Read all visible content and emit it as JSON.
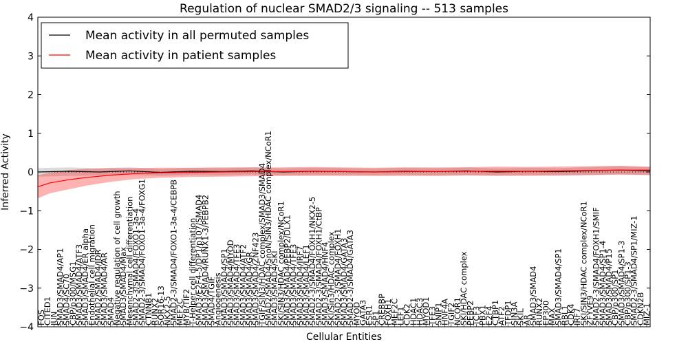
{
  "chart_data": {
    "type": "line",
    "title": "Regulation of nuclear SMAD2/3 signaling -- 513 samples",
    "xlabel": "Cellular Entities",
    "ylabel": "Inferred Activity",
    "ylim": [
      -4,
      4
    ],
    "yticks": [
      -4,
      -3,
      -2,
      -1,
      0,
      1,
      2,
      3,
      4
    ],
    "legend": {
      "position": "top-left",
      "entries": [
        {
          "label": "Mean activity in all permuted samples",
          "color": "#000000"
        },
        {
          "label": "Mean activity in patient samples",
          "color": "#ff0000"
        }
      ]
    },
    "colors": {
      "permuted": "#000000",
      "patient": "#ff0000",
      "permuted_band": "#b0b0b0",
      "patient_band": "#ff0000"
    },
    "categories": [
      "FOS",
      "CITED1",
      "JUN",
      "SMAD3/SMAD4/AP1",
      "SMAD4/SC70",
      "CBP/p300/MSG1",
      "SMAD3/SMAD4/ATF3",
      "SMAD3/SMAD4/ER alpha",
      "Endothelial cell migration",
      "SMAD2/SMAD4/JDR",
      "SMAD3/SMAD4/AR",
      "SMAD4",
      "Negative regulation of cell growth",
      "SMAD3/SMAD4/Max",
      "Mesenchymal cell differentiation",
      "SMAD2-3/SMAD4/FOXO1-3a-4",
      "SMAD2-3/SMAD4/FOXO1-3a-4/FOXG1",
      "CTNNB1",
      "RUNX2",
      "SOR16-13",
      "NKX2-5",
      "SMAD2-3/SMAD4/FOXO1-3a-4/CEBPB",
      "MEF2C",
      "MYB/TIF2",
      "T-Helper cell differentiation",
      "SMAD3/E2F4-5/DP1/p107/SMAD4",
      "SMAD3/SMAD4/RUNX1-3/PEBPB2",
      "SMAD4/TGIF",
      "Angiogenesis",
      "SMAD3/SMAD4/SP1",
      "SMAD3/SMAD4/MYOD",
      "SMAD3/SMAD4/TFE3",
      "SMAD3/SMAD4/ATF2",
      "SMAD3/SMAD4/GR",
      "SMAD3/SMAD4/ZNF423",
      "TGIF/SIN3/HDAC complex/SMAD3/SMAD4",
      "SMAD2/SMAD4/SnoN/SIN3/HDAC complex/NCoR1",
      "SMAD3/SMAD4/SKI",
      "SKI/SIN3/HDAC complex/NCoR1",
      "SMAD3/SMAD4/PEBP2/DLX1",
      "SMAD3/SMAD4/TFE3",
      "SMAD3/SMAD4/IRF7",
      "SMAD3/SMAD4/LEF1",
      "SMAD2-3/SMAD4/FOXH1/NKX2-5",
      "SMAD2-3/SMAD4/FOXH1/CtBP",
      "SMAD3/SMAD4/HNF4",
      "SKI/Sin3/HDAC complex",
      "SMAD2-3/SMAD4/FOXH1",
      "SMAD3/SMAD4/GATA3",
      "SMAD2-3/SMAD4/GATA3",
      "MYOD",
      "GATA3",
      "ESR1",
      "SP1",
      "CREBBP",
      "FOXH1",
      "MEF2C",
      "LEF1",
      "CDK2",
      "HDAC1",
      "HDAC3",
      "MYOD1",
      "TFE3",
      "SNIP1",
      "HNF4A",
      "TGIF2",
      "NCOR1",
      "SKI/HDAC complex",
      "PEBP2",
      "TCF3",
      "PBX1",
      "E2F4",
      "CTBP1",
      "ATF2",
      "TFDP1",
      "SIN3A",
      "SKIL",
      "AR",
      "SMAD3/SMAD4",
      "RUNX2",
      "EP300",
      "MAX",
      "SMAD3/SMAD4/SP1",
      "RBL1",
      "CDK4",
      "IRF7",
      "SKI/SIN3/HDAC complex/NCoR1",
      "ZFYVE9",
      "SMAD2-3/SMAD4/FOXH1/SMIF",
      "SMAD3/SMAD4/SP1-4",
      "SMAD3/SMAD4/P15",
      "CBP/p300/SP1",
      "SMAD3/SMAD4/SP1-3",
      "CBP/p300/SP1-3",
      "SMAD2-3/SMAD4/SP1/MIZ-1",
      "CDKN2B",
      "MIZ-1"
    ],
    "series": [
      {
        "name": "Mean activity in all permuted samples",
        "x": [
          0,
          0.05,
          0.1,
          0.15,
          0.2,
          0.25,
          0.3,
          0.35,
          0.4,
          0.45,
          0.5,
          0.55,
          0.6,
          0.65,
          0.7,
          0.75,
          0.8,
          0.85,
          0.9,
          0.95,
          1.0
        ],
        "values": [
          0.0,
          0.02,
          0.0,
          0.03,
          -0.01,
          0.02,
          0.01,
          0.03,
          0.0,
          0.02,
          0.01,
          0.0,
          0.02,
          0.01,
          0.03,
          0.0,
          0.02,
          0.01,
          0.03,
          0.05,
          0.03
        ],
        "band": [
          [
            -0.12,
            0.1
          ],
          [
            -0.1,
            0.12
          ],
          [
            -0.09,
            0.1
          ],
          [
            -0.08,
            0.12
          ],
          [
            -0.1,
            0.08
          ],
          [
            -0.08,
            0.11
          ],
          [
            -0.09,
            0.1
          ],
          [
            -0.07,
            0.12
          ],
          [
            -0.09,
            0.09
          ],
          [
            -0.08,
            0.11
          ],
          [
            -0.08,
            0.1
          ],
          [
            -0.09,
            0.09
          ],
          [
            -0.08,
            0.11
          ],
          [
            -0.09,
            0.1
          ],
          [
            -0.08,
            0.12
          ],
          [
            -0.09,
            0.09
          ],
          [
            -0.08,
            0.11
          ],
          [
            -0.09,
            0.1
          ],
          [
            -0.08,
            0.13
          ],
          [
            -0.06,
            0.15
          ],
          [
            -0.08,
            0.12
          ]
        ]
      },
      {
        "name": "Mean activity in patient samples",
        "x": [
          0,
          0.02,
          0.05,
          0.08,
          0.12,
          0.16,
          0.2,
          0.25,
          0.3,
          0.35,
          0.4,
          0.45,
          0.5,
          0.55,
          0.6,
          0.65,
          0.7,
          0.75,
          0.8,
          0.85,
          0.9,
          0.95,
          1.0
        ],
        "values": [
          -0.38,
          -0.28,
          -0.2,
          -0.14,
          -0.08,
          -0.04,
          -0.02,
          -0.01,
          0.0,
          0.01,
          0.01,
          0.02,
          0.01,
          0.0,
          0.01,
          0.01,
          0.02,
          0.02,
          0.02,
          0.03,
          0.04,
          0.05,
          0.05
        ],
        "band": [
          [
            -0.68,
            -0.08
          ],
          [
            -0.55,
            -0.02
          ],
          [
            -0.45,
            0.05
          ],
          [
            -0.35,
            0.08
          ],
          [
            -0.25,
            0.1
          ],
          [
            -0.18,
            0.1
          ],
          [
            -0.15,
            0.11
          ],
          [
            -0.13,
            0.11
          ],
          [
            -0.12,
            0.12
          ],
          [
            -0.11,
            0.12
          ],
          [
            -0.1,
            0.12
          ],
          [
            -0.1,
            0.13
          ],
          [
            -0.1,
            0.12
          ],
          [
            -0.1,
            0.11
          ],
          [
            -0.1,
            0.12
          ],
          [
            -0.1,
            0.12
          ],
          [
            -0.09,
            0.12
          ],
          [
            -0.1,
            0.14
          ],
          [
            -0.1,
            0.13
          ],
          [
            -0.09,
            0.14
          ],
          [
            -0.08,
            0.15
          ],
          [
            -0.07,
            0.16
          ],
          [
            -0.08,
            0.14
          ]
        ]
      }
    ]
  }
}
